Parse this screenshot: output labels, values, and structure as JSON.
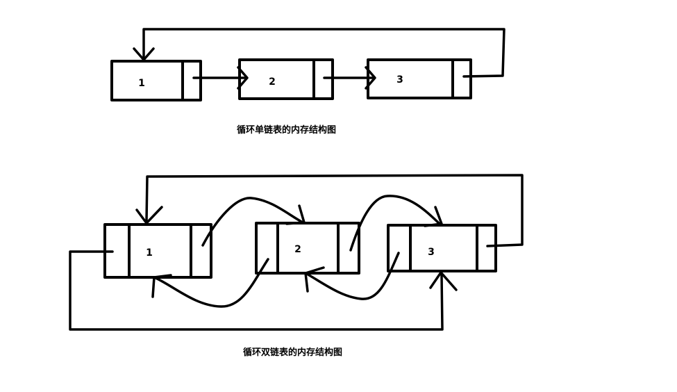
{
  "single_list": {
    "caption": "循环单链表的内存结构图",
    "nodes": [
      "1",
      "2",
      "3"
    ]
  },
  "double_list": {
    "caption": "循环双链表的内存结构图",
    "nodes": [
      "1",
      "2",
      "3"
    ]
  }
}
